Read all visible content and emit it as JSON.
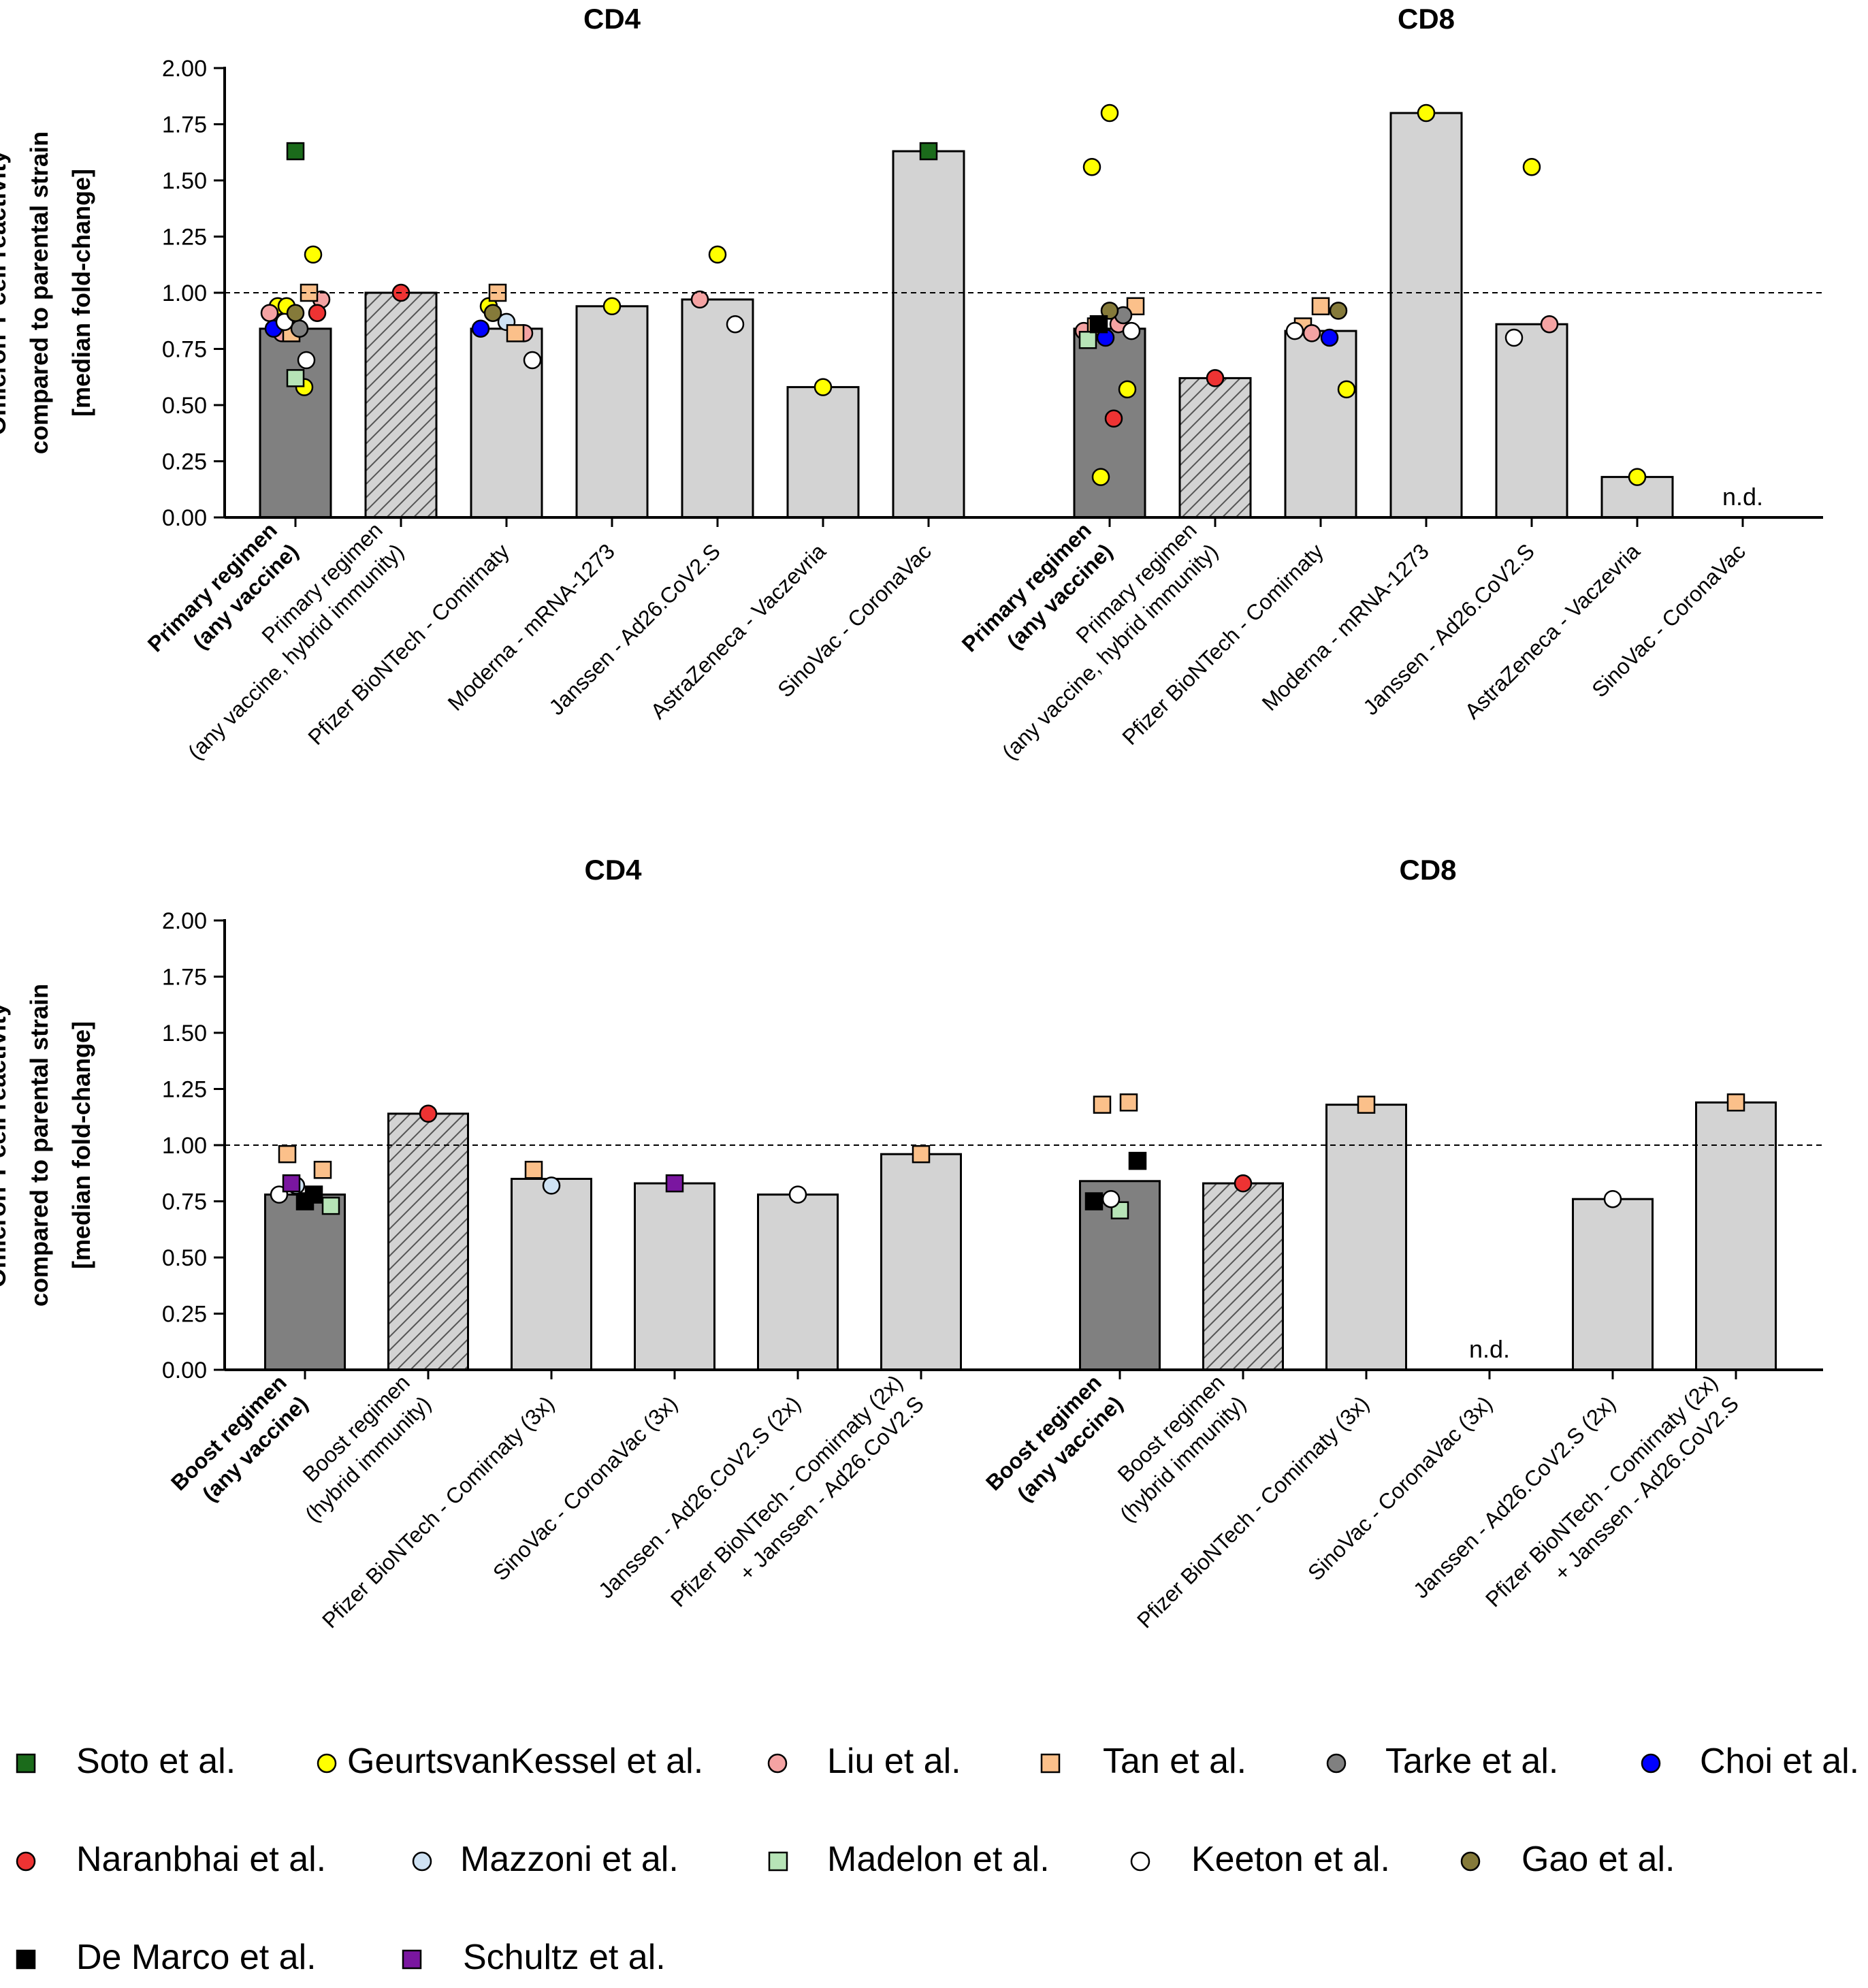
{
  "figure": {
    "y_axis_label_lines": [
      "Omicron T cell reactivity",
      "compared to parental strain",
      "[median fold-change]"
    ],
    "reference_line": 1.0,
    "nd_label": "n.d."
  },
  "colors": {
    "bar_primary": "#808080",
    "bar_other": "#d3d3d3",
    "bar_edge": "#000000",
    "hatch": "#444444"
  },
  "studies": [
    {
      "name": "Soto et al.",
      "marker": "square",
      "color": "#1b6b1b"
    },
    {
      "name": "GeurtsvanKessel et al.",
      "marker": "circle",
      "color": "#ffff00"
    },
    {
      "name": "Liu et al.",
      "marker": "circle",
      "color": "#f4a3a3"
    },
    {
      "name": "Tan et al.",
      "marker": "square",
      "color": "#fbc08a"
    },
    {
      "name": "Tarke et al.",
      "marker": "circle",
      "color": "#808080"
    },
    {
      "name": "Choi et al.",
      "marker": "circle",
      "color": "#0000ff"
    },
    {
      "name": "Naranbhai et al.",
      "marker": "circle",
      "color": "#ee3333"
    },
    {
      "name": "Mazzoni et al.",
      "marker": "circle",
      "color": "#cfe2f3"
    },
    {
      "name": "Madelon et al.",
      "marker": "square",
      "color": "#b7e4b7"
    },
    {
      "name": "Keeton et al.",
      "marker": "circle",
      "color": "#ffffff"
    },
    {
      "name": "Gao et al.",
      "marker": "circle",
      "color": "#857a3a"
    },
    {
      "name": "De  Marco et al.",
      "marker": "square",
      "color": "#000000"
    },
    {
      "name": "Schultz et al.",
      "marker": "square",
      "color": "#7a16a0"
    }
  ],
  "chart_data": [
    {
      "type": "bar",
      "panel": "primary",
      "ylim": [
        0,
        2
      ],
      "yticks": [
        "0.00",
        "0.25",
        "0.50",
        "0.75",
        "1.00",
        "1.25",
        "1.50",
        "1.75",
        "2.00"
      ],
      "groups": [
        {
          "title": "CD4",
          "bars": [
            {
              "label": [
                "Primary regimen",
                "(any vaccine)"
              ],
              "bold": true,
              "value": 0.84,
              "style": "dark",
              "points": [
                [
                  0,
                  1.63
                ],
                [
                  1,
                  0.94
                ],
                [
                  1,
                  1.17
                ],
                [
                  1,
                  0.94
                ],
                [
                  1,
                  0.58
                ],
                [
                  2,
                  0.91
                ],
                [
                  2,
                  0.97
                ],
                [
                  2,
                  0.82
                ],
                [
                  3,
                  1.0
                ],
                [
                  3,
                  0.82
                ],
                [
                  4,
                  0.84
                ],
                [
                  5,
                  0.84
                ],
                [
                  6,
                  0.91
                ],
                [
                  8,
                  0.62
                ],
                [
                  9,
                  0.87
                ],
                [
                  9,
                  0.7
                ],
                [
                  10,
                  0.91
                ]
              ]
            },
            {
              "label": [
                "Primary regimen",
                "(any vaccine, hybrid immunity)"
              ],
              "bold": false,
              "value": 1.0,
              "style": "hatch",
              "points": [
                [
                  6,
                  1.0
                ]
              ]
            },
            {
              "label": [
                "Pfizer BioNTech - Comirnaty"
              ],
              "bold": false,
              "value": 0.84,
              "style": "light",
              "points": [
                [
                  7,
                  0.87
                ],
                [
                  1,
                  0.94
                ],
                [
                  2,
                  0.82
                ],
                [
                  3,
                  1.0
                ],
                [
                  3,
                  0.82
                ],
                [
                  5,
                  0.84
                ],
                [
                  9,
                  0.7
                ],
                [
                  10,
                  0.91
                ]
              ]
            },
            {
              "label": [
                "Moderna - mRNA-1273"
              ],
              "bold": false,
              "value": 0.94,
              "style": "light",
              "points": [
                [
                  1,
                  0.94
                ]
              ]
            },
            {
              "label": [
                "Janssen - Ad26.CoV2.S"
              ],
              "bold": false,
              "value": 0.97,
              "style": "light",
              "points": [
                [
                  1,
                  1.17
                ],
                [
                  2,
                  0.97
                ],
                [
                  9,
                  0.86
                ]
              ]
            },
            {
              "label": [
                "AstraZeneca - Vaczevria"
              ],
              "bold": false,
              "value": 0.58,
              "style": "light",
              "points": [
                [
                  1,
                  0.58
                ]
              ]
            },
            {
              "label": [
                "SinoVac - CoronaVac"
              ],
              "bold": false,
              "value": 1.63,
              "style": "light",
              "points": [
                [
                  0,
                  1.63
                ]
              ]
            }
          ]
        },
        {
          "title": "CD8",
          "bars": [
            {
              "label": [
                "Primary regimen",
                "(any vaccine)"
              ],
              "bold": true,
              "value": 0.84,
              "style": "dark",
              "points": [
                [
                  1,
                  1.8
                ],
                [
                  1,
                  1.56
                ],
                [
                  1,
                  0.57
                ],
                [
                  1,
                  0.18
                ],
                [
                  2,
                  0.86
                ],
                [
                  2,
                  0.83
                ],
                [
                  3,
                  0.94
                ],
                [
                  3,
                  0.85
                ],
                [
                  4,
                  0.9
                ],
                [
                  5,
                  0.8
                ],
                [
                  6,
                  0.44
                ],
                [
                  8,
                  0.79
                ],
                [
                  9,
                  0.83
                ],
                [
                  10,
                  0.92
                ],
                [
                  11,
                  0.86
                ]
              ]
            },
            {
              "label": [
                "Primary regimen",
                "(any vaccine, hybrid immunity)"
              ],
              "bold": false,
              "value": 0.62,
              "style": "hatch",
              "points": [
                [
                  6,
                  0.62
                ]
              ]
            },
            {
              "label": [
                "Pfizer BioNTech - Comirnaty"
              ],
              "bold": false,
              "value": 0.83,
              "style": "light",
              "points": [
                [
                  3,
                  0.94
                ],
                [
                  3,
                  0.85
                ],
                [
                  10,
                  0.92
                ],
                [
                  2,
                  0.82
                ],
                [
                  5,
                  0.8
                ],
                [
                  9,
                  0.83
                ],
                [
                  1,
                  0.57
                ]
              ]
            },
            {
              "label": [
                "Moderna - mRNA-1273"
              ],
              "bold": false,
              "value": 1.8,
              "style": "light",
              "points": [
                [
                  1,
                  1.8
                ]
              ]
            },
            {
              "label": [
                "Janssen - Ad26.CoV2.S"
              ],
              "bold": false,
              "value": 0.86,
              "style": "light",
              "points": [
                [
                  1,
                  1.56
                ],
                [
                  9,
                  0.8
                ],
                [
                  2,
                  0.86
                ]
              ]
            },
            {
              "label": [
                "AstraZeneca - Vaczevria"
              ],
              "bold": false,
              "value": 0.18,
              "style": "light",
              "points": [
                [
                  1,
                  0.18
                ]
              ]
            },
            {
              "label": [
                "SinoVac - CoronaVac"
              ],
              "bold": false,
              "value": null,
              "style": "light",
              "nd": true,
              "points": []
            }
          ]
        }
      ]
    },
    {
      "type": "bar",
      "panel": "boost",
      "ylim": [
        0,
        2
      ],
      "yticks": [
        "0.00",
        "0.25",
        "0.50",
        "0.75",
        "1.00",
        "1.25",
        "1.50",
        "1.75",
        "2.00"
      ],
      "groups": [
        {
          "title": "CD4",
          "bars": [
            {
              "label": [
                "Boost regimen",
                "(any vaccine)"
              ],
              "bold": true,
              "value": 0.78,
              "style": "dark",
              "points": [
                [
                  11,
                  0.75
                ],
                [
                  3,
                  0.96
                ],
                [
                  3,
                  0.89
                ],
                [
                  7,
                  0.82
                ],
                [
                  11,
                  0.78
                ],
                [
                  9,
                  0.78
                ],
                [
                  8,
                  0.73
                ],
                [
                  12,
                  0.83
                ]
              ]
            },
            {
              "label": [
                "Boost regimen",
                "(hybrid immunity)"
              ],
              "bold": false,
              "value": 1.14,
              "style": "hatch",
              "points": [
                [
                  6,
                  1.14
                ]
              ]
            },
            {
              "label": [
                "Pfizer BioNTech - Comirnaty (3x)"
              ],
              "bold": false,
              "value": 0.85,
              "style": "light",
              "points": [
                [
                  7,
                  0.82
                ],
                [
                  3,
                  0.89
                ]
              ]
            },
            {
              "label": [
                "SinoVac - CoronaVac (3x)"
              ],
              "bold": false,
              "value": 0.83,
              "style": "light",
              "points": [
                [
                  12,
                  0.83
                ]
              ]
            },
            {
              "label": [
                "Janssen - Ad26.CoV2.S (2x)"
              ],
              "bold": false,
              "value": 0.78,
              "style": "light",
              "points": [
                [
                  9,
                  0.78
                ]
              ]
            },
            {
              "label": [
                "Pfizer BioNTech - Comirnaty (2x)",
                "+ Janssen - Ad26.CoV2.S"
              ],
              "bold": false,
              "value": 0.96,
              "style": "light",
              "points": [
                [
                  3,
                  0.96
                ]
              ]
            }
          ]
        },
        {
          "title": "CD8",
          "bars": [
            {
              "label": [
                "Boost regimen",
                "(any vaccine)"
              ],
              "bold": true,
              "value": 0.84,
              "style": "dark",
              "points": [
                [
                  8,
                  0.71
                ],
                [
                  3,
                  1.18
                ],
                [
                  11,
                  0.93
                ],
                [
                  9,
                  0.76
                ],
                [
                  3,
                  1.19
                ],
                [
                  11,
                  0.75
                ]
              ]
            },
            {
              "label": [
                "Boost regimen",
                "(hybrid immunity)"
              ],
              "bold": false,
              "value": 0.83,
              "style": "hatch",
              "points": [
                [
                  6,
                  0.83
                ]
              ]
            },
            {
              "label": [
                "Pfizer BioNTech - Comirnaty (3x)"
              ],
              "bold": false,
              "value": 1.18,
              "style": "light",
              "points": [
                [
                  3,
                  1.18
                ]
              ]
            },
            {
              "label": [
                "SinoVac - CoronaVac (3x)"
              ],
              "bold": false,
              "value": null,
              "style": "light",
              "nd": true,
              "points": []
            },
            {
              "label": [
                "Janssen - Ad26.CoV2.S (2x)"
              ],
              "bold": false,
              "value": 0.76,
              "style": "light",
              "points": [
                [
                  9,
                  0.76
                ]
              ]
            },
            {
              "label": [
                "Pfizer BioNTech - Comirnaty (2x)",
                "+ Janssen - Ad26.CoV2.S"
              ],
              "bold": false,
              "value": 1.19,
              "style": "light",
              "points": [
                [
                  3,
                  1.19
                ]
              ]
            }
          ]
        }
      ]
    }
  ]
}
